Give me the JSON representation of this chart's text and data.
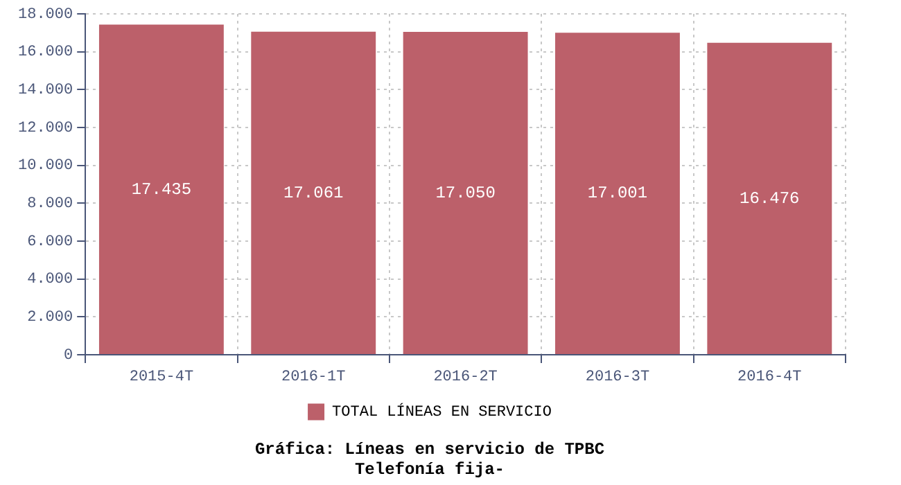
{
  "chart_data": {
    "type": "bar",
    "title": "Gráfica: Líneas en servicio de TPBC",
    "subtitle": "Telefonía fija-",
    "categories": [
      "2015-4T",
      "2016-1T",
      "2016-2T",
      "2016-3T",
      "2016-4T"
    ],
    "series": [
      {
        "name": "TOTAL LÍNEAS EN SERVICIO",
        "color": "#bc606a",
        "values": [
          17435,
          17061,
          17050,
          17001,
          16476
        ],
        "value_labels": [
          "17.435",
          "17.061",
          "17.050",
          "17.001",
          "16.476"
        ]
      }
    ],
    "ylim": [
      0,
      18000
    ],
    "yticks": [
      {
        "value": 0,
        "label": "0"
      },
      {
        "value": 2000,
        "label": "2.000"
      },
      {
        "value": 4000,
        "label": "4.000"
      },
      {
        "value": 6000,
        "label": "6.000"
      },
      {
        "value": 8000,
        "label": "8.000"
      },
      {
        "value": 10000,
        "label": "10.000"
      },
      {
        "value": 12000,
        "label": "12.000"
      },
      {
        "value": 14000,
        "label": "14.000"
      },
      {
        "value": 16000,
        "label": "16.000"
      },
      {
        "value": 18000,
        "label": "18.000"
      }
    ],
    "grid": true,
    "legend": "bottom"
  }
}
